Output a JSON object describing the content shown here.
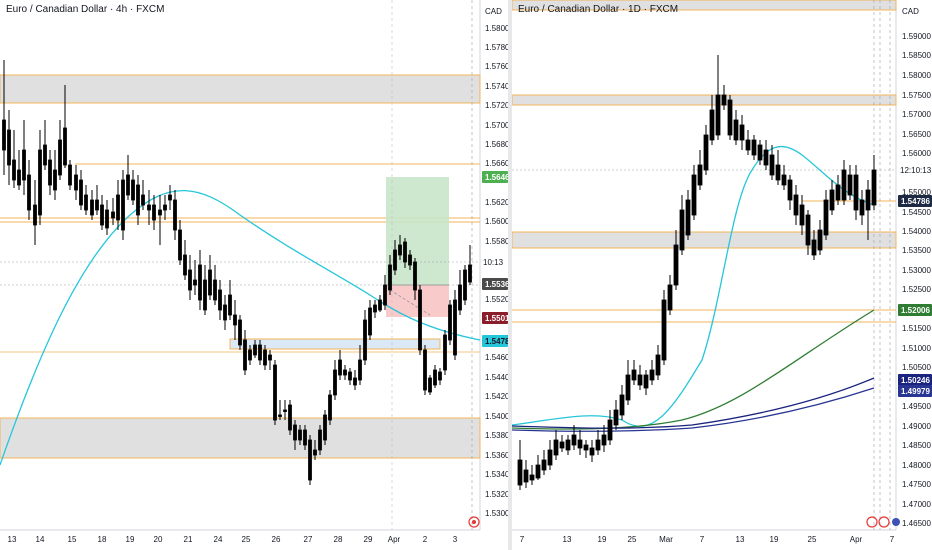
{
  "left_chart": {
    "title": "Euro / Canadian Dollar · 4h · FXCM",
    "currency": "CAD",
    "y_ticks": [
      "1.58000",
      "1.57800",
      "1.57600",
      "1.57400",
      "1.57200",
      "1.57000",
      "1.56800",
      "1.56600",
      "1.56200",
      "1.56000",
      "1.55800",
      "1.55200",
      "1.55000",
      "1.54800",
      "1.54600",
      "1.54400",
      "1.54200",
      "1.54000",
      "1.53800",
      "1.53600",
      "1.53400",
      "1.53200",
      "1.53000"
    ],
    "x_ticks": [
      "13",
      "14",
      "15",
      "18",
      "19",
      "20",
      "21",
      "24",
      "25",
      "26",
      "27",
      "28",
      "29",
      "Apr",
      "2",
      "3"
    ],
    "badges": {
      "target": "1.56463",
      "current": "1.55363",
      "stop": "1.55014",
      "ma": "1.54786",
      "countdown_partial": "10:13"
    },
    "colors": {
      "target": "#4caf50",
      "current": "#4a4a4a",
      "stop": "#8b1c2a",
      "ma": "#26c6da"
    }
  },
  "right_chart": {
    "title": "Euro / Canadian Dollar · 1D · FXCM",
    "currency": "CAD",
    "y_ticks": [
      "1.59000",
      "1.58500",
      "1.58000",
      "1.57500",
      "1.57000",
      "1.56500",
      "1.56000",
      "1.55000",
      "1.54500",
      "1.54000",
      "1.53500",
      "1.53000",
      "1.52500",
      "1.51500",
      "1.51000",
      "1.50500",
      "1.49500",
      "1.49000",
      "1.48500",
      "1.48000",
      "1.47500",
      "1.47000",
      "1.46500"
    ],
    "x_ticks": [
      "7",
      "13",
      "19",
      "25",
      "Mar",
      "7",
      "13",
      "19",
      "25",
      "Apr",
      "7"
    ],
    "badges": {
      "countdown": "12:10:13",
      "current": "1.54786",
      "ma_green": "1.52006",
      "ma_navy1": "1.50246",
      "ma_navy2": "1.49979"
    },
    "colors": {
      "current": "#1e2a44",
      "ma_green": "#2e7d32",
      "ma_navy1": "#1a237e",
      "ma_navy2": "#283593"
    }
  }
}
